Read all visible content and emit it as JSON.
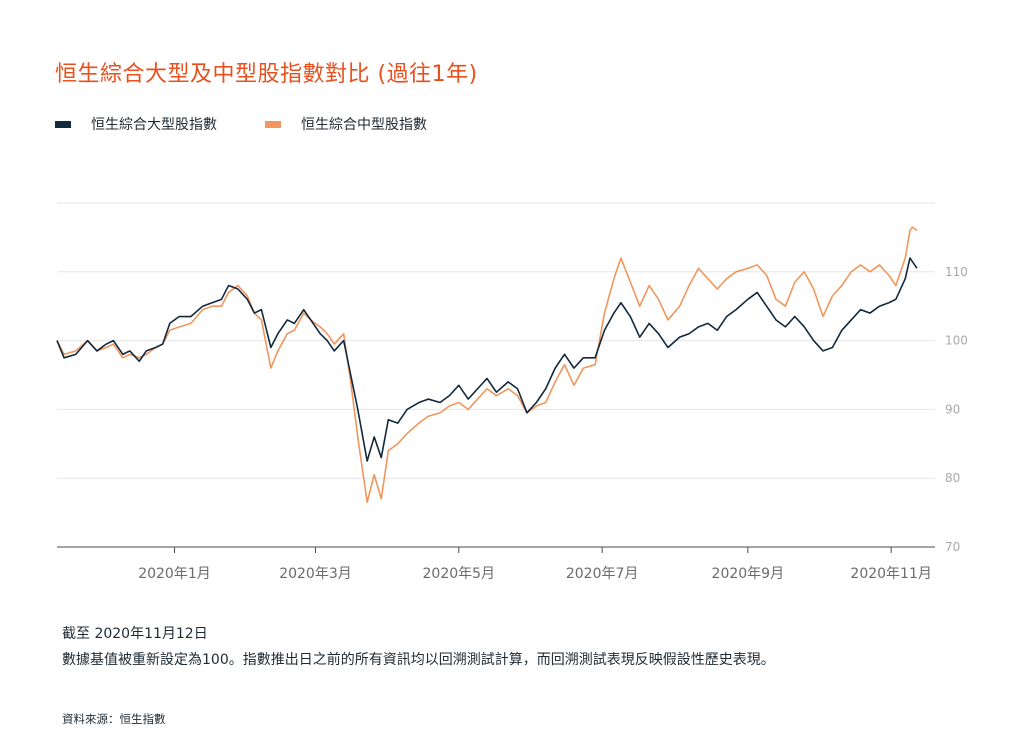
{
  "chart_data": {
    "type": "line",
    "title": "恒生綜合大型及中型股指數對比 (過往1年)",
    "legend_placement": "top-left",
    "grid": true,
    "ylim": [
      70,
      120
    ],
    "yticks": [
      70,
      80,
      90,
      100,
      110
    ],
    "x_ticks": [
      "2020年1月",
      "2020年3月",
      "2020年5月",
      "2020年7月",
      "2020年9月",
      "2020年11月"
    ],
    "x_tick_dates": [
      "2020-01-01",
      "2020-03-01",
      "2020-05-01",
      "2020-07-01",
      "2020-09-01",
      "2020-11-01"
    ],
    "x_range": [
      "2019-11-12",
      "2020-11-12"
    ],
    "series": [
      {
        "name": "恒生綜合大型股指數",
        "color": "#13293d",
        "points": [
          [
            "2019-11-12",
            100
          ],
          [
            "2019-11-15",
            97.5
          ],
          [
            "2019-11-20",
            98
          ],
          [
            "2019-11-25",
            100
          ],
          [
            "2019-11-29",
            98.5
          ],
          [
            "2019-12-03",
            99.5
          ],
          [
            "2019-12-06",
            100
          ],
          [
            "2019-12-10",
            98
          ],
          [
            "2019-12-13",
            98.5
          ],
          [
            "2019-12-17",
            97
          ],
          [
            "2019-12-20",
            98.5
          ],
          [
            "2019-12-24",
            99
          ],
          [
            "2019-12-27",
            99.5
          ],
          [
            "2019-12-30",
            102.5
          ],
          [
            "2020-01-03",
            103.5
          ],
          [
            "2020-01-08",
            103.5
          ],
          [
            "2020-01-13",
            105
          ],
          [
            "2020-01-17",
            105.5
          ],
          [
            "2020-01-21",
            106
          ],
          [
            "2020-01-24",
            108
          ],
          [
            "2020-01-28",
            107.5
          ],
          [
            "2020-02-01",
            106
          ],
          [
            "2020-02-04",
            104
          ],
          [
            "2020-02-07",
            104.5
          ],
          [
            "2020-02-11",
            99
          ],
          [
            "2020-02-14",
            101
          ],
          [
            "2020-02-18",
            103
          ],
          [
            "2020-02-21",
            102.5
          ],
          [
            "2020-02-25",
            104.5
          ],
          [
            "2020-02-28",
            103
          ],
          [
            "2020-03-03",
            101
          ],
          [
            "2020-03-06",
            100
          ],
          [
            "2020-03-09",
            98.5
          ],
          [
            "2020-03-13",
            100
          ],
          [
            "2020-03-16",
            95
          ],
          [
            "2020-03-19",
            90
          ],
          [
            "2020-03-23",
            82.5
          ],
          [
            "2020-03-26",
            86
          ],
          [
            "2020-03-29",
            83
          ],
          [
            "2020-04-01",
            88.5
          ],
          [
            "2020-04-05",
            88
          ],
          [
            "2020-04-09",
            90
          ],
          [
            "2020-04-14",
            91
          ],
          [
            "2020-04-18",
            91.5
          ],
          [
            "2020-04-23",
            91
          ],
          [
            "2020-04-27",
            92
          ],
          [
            "2020-05-01",
            93.5
          ],
          [
            "2020-05-05",
            91.5
          ],
          [
            "2020-05-09",
            93
          ],
          [
            "2020-05-13",
            94.5
          ],
          [
            "2020-05-17",
            92.5
          ],
          [
            "2020-05-22",
            94
          ],
          [
            "2020-05-26",
            93
          ],
          [
            "2020-05-30",
            89.5
          ],
          [
            "2020-06-03",
            91
          ],
          [
            "2020-06-07",
            93
          ],
          [
            "2020-06-11",
            96
          ],
          [
            "2020-06-15",
            98
          ],
          [
            "2020-06-19",
            96
          ],
          [
            "2020-06-23",
            97.5
          ],
          [
            "2020-06-28",
            97.5
          ],
          [
            "2020-07-02",
            101.5
          ],
          [
            "2020-07-06",
            104
          ],
          [
            "2020-07-09",
            105.5
          ],
          [
            "2020-07-13",
            103.5
          ],
          [
            "2020-07-17",
            100.5
          ],
          [
            "2020-07-21",
            102.5
          ],
          [
            "2020-07-25",
            101
          ],
          [
            "2020-07-29",
            99
          ],
          [
            "2020-08-03",
            100.5
          ],
          [
            "2020-08-07",
            101
          ],
          [
            "2020-08-11",
            102
          ],
          [
            "2020-08-15",
            102.5
          ],
          [
            "2020-08-19",
            101.5
          ],
          [
            "2020-08-23",
            103.5
          ],
          [
            "2020-08-27",
            104.5
          ],
          [
            "2020-09-01",
            106
          ],
          [
            "2020-09-05",
            107
          ],
          [
            "2020-09-09",
            105
          ],
          [
            "2020-09-13",
            103
          ],
          [
            "2020-09-17",
            102
          ],
          [
            "2020-09-21",
            103.5
          ],
          [
            "2020-09-25",
            102
          ],
          [
            "2020-09-29",
            100
          ],
          [
            "2020-10-03",
            98.5
          ],
          [
            "2020-10-07",
            99
          ],
          [
            "2020-10-11",
            101.5
          ],
          [
            "2020-10-15",
            103
          ],
          [
            "2020-10-19",
            104.5
          ],
          [
            "2020-10-23",
            104
          ],
          [
            "2020-10-27",
            105
          ],
          [
            "2020-10-31",
            105.5
          ],
          [
            "2020-11-03",
            106
          ],
          [
            "2020-11-07",
            109
          ],
          [
            "2020-11-09",
            112
          ],
          [
            "2020-11-10",
            111.5
          ],
          [
            "2020-11-12",
            110.5
          ]
        ]
      },
      {
        "name": "恒生綜合中型股指數",
        "color": "#f0975d",
        "points": [
          [
            "2019-11-12",
            100
          ],
          [
            "2019-11-15",
            98
          ],
          [
            "2019-11-20",
            98.5
          ],
          [
            "2019-11-25",
            100
          ],
          [
            "2019-11-29",
            98.5
          ],
          [
            "2019-12-03",
            99
          ],
          [
            "2019-12-06",
            99.5
          ],
          [
            "2019-12-10",
            97.5
          ],
          [
            "2019-12-13",
            98
          ],
          [
            "2019-12-17",
            97.5
          ],
          [
            "2019-12-20",
            98
          ],
          [
            "2019-12-24",
            99
          ],
          [
            "2019-12-27",
            99.5
          ],
          [
            "2019-12-30",
            101.5
          ],
          [
            "2020-01-03",
            102
          ],
          [
            "2020-01-08",
            102.5
          ],
          [
            "2020-01-13",
            104.5
          ],
          [
            "2020-01-17",
            105
          ],
          [
            "2020-01-21",
            105
          ],
          [
            "2020-01-24",
            107
          ],
          [
            "2020-01-28",
            108
          ],
          [
            "2020-02-01",
            106.5
          ],
          [
            "2020-02-04",
            104
          ],
          [
            "2020-02-07",
            103
          ],
          [
            "2020-02-11",
            96
          ],
          [
            "2020-02-14",
            98.5
          ],
          [
            "2020-02-18",
            101
          ],
          [
            "2020-02-21",
            101.5
          ],
          [
            "2020-02-25",
            104
          ],
          [
            "2020-02-28",
            103
          ],
          [
            "2020-03-03",
            102
          ],
          [
            "2020-03-06",
            101
          ],
          [
            "2020-03-09",
            99.5
          ],
          [
            "2020-03-13",
            101
          ],
          [
            "2020-03-16",
            94
          ],
          [
            "2020-03-19",
            86
          ],
          [
            "2020-03-23",
            76.5
          ],
          [
            "2020-03-26",
            80.5
          ],
          [
            "2020-03-29",
            77
          ],
          [
            "2020-04-01",
            84
          ],
          [
            "2020-04-05",
            85
          ],
          [
            "2020-04-09",
            86.5
          ],
          [
            "2020-04-14",
            88
          ],
          [
            "2020-04-18",
            89
          ],
          [
            "2020-04-23",
            89.5
          ],
          [
            "2020-04-27",
            90.5
          ],
          [
            "2020-05-01",
            91
          ],
          [
            "2020-05-05",
            90
          ],
          [
            "2020-05-09",
            91.5
          ],
          [
            "2020-05-13",
            93
          ],
          [
            "2020-05-17",
            92
          ],
          [
            "2020-05-22",
            93
          ],
          [
            "2020-05-26",
            92
          ],
          [
            "2020-05-30",
            89.5
          ],
          [
            "2020-06-03",
            90.5
          ],
          [
            "2020-06-07",
            91
          ],
          [
            "2020-06-11",
            94
          ],
          [
            "2020-06-15",
            96.5
          ],
          [
            "2020-06-19",
            93.5
          ],
          [
            "2020-06-23",
            96
          ],
          [
            "2020-06-28",
            96.5
          ],
          [
            "2020-07-02",
            104
          ],
          [
            "2020-07-06",
            109
          ],
          [
            "2020-07-09",
            112
          ],
          [
            "2020-07-13",
            108.5
          ],
          [
            "2020-07-17",
            105
          ],
          [
            "2020-07-21",
            108
          ],
          [
            "2020-07-25",
            106
          ],
          [
            "2020-07-29",
            103
          ],
          [
            "2020-08-03",
            105
          ],
          [
            "2020-08-07",
            108
          ],
          [
            "2020-08-11",
            110.5
          ],
          [
            "2020-08-15",
            109
          ],
          [
            "2020-08-19",
            107.5
          ],
          [
            "2020-08-23",
            109
          ],
          [
            "2020-08-27",
            110
          ],
          [
            "2020-09-01",
            110.5
          ],
          [
            "2020-09-05",
            111
          ],
          [
            "2020-09-09",
            109.5
          ],
          [
            "2020-09-13",
            106
          ],
          [
            "2020-09-17",
            105
          ],
          [
            "2020-09-21",
            108.5
          ],
          [
            "2020-09-25",
            110
          ],
          [
            "2020-09-29",
            107.5
          ],
          [
            "2020-10-03",
            103.5
          ],
          [
            "2020-10-07",
            106.5
          ],
          [
            "2020-10-11",
            108
          ],
          [
            "2020-10-15",
            110
          ],
          [
            "2020-10-19",
            111
          ],
          [
            "2020-10-23",
            110
          ],
          [
            "2020-10-27",
            111
          ],
          [
            "2020-10-31",
            109.5
          ],
          [
            "2020-11-03",
            108
          ],
          [
            "2020-11-07",
            112
          ],
          [
            "2020-11-09",
            116
          ],
          [
            "2020-11-10",
            116.5
          ],
          [
            "2020-11-12",
            116
          ]
        ]
      }
    ]
  },
  "notes": {
    "as_of": "截至 2020年11月12日",
    "description": "數據基值被重新設定為100。指數推出日之前的所有資訊均以回溯測試計算，而回溯測試表現反映假設性歷史表現。"
  },
  "source": "資料來源：恒生指數"
}
